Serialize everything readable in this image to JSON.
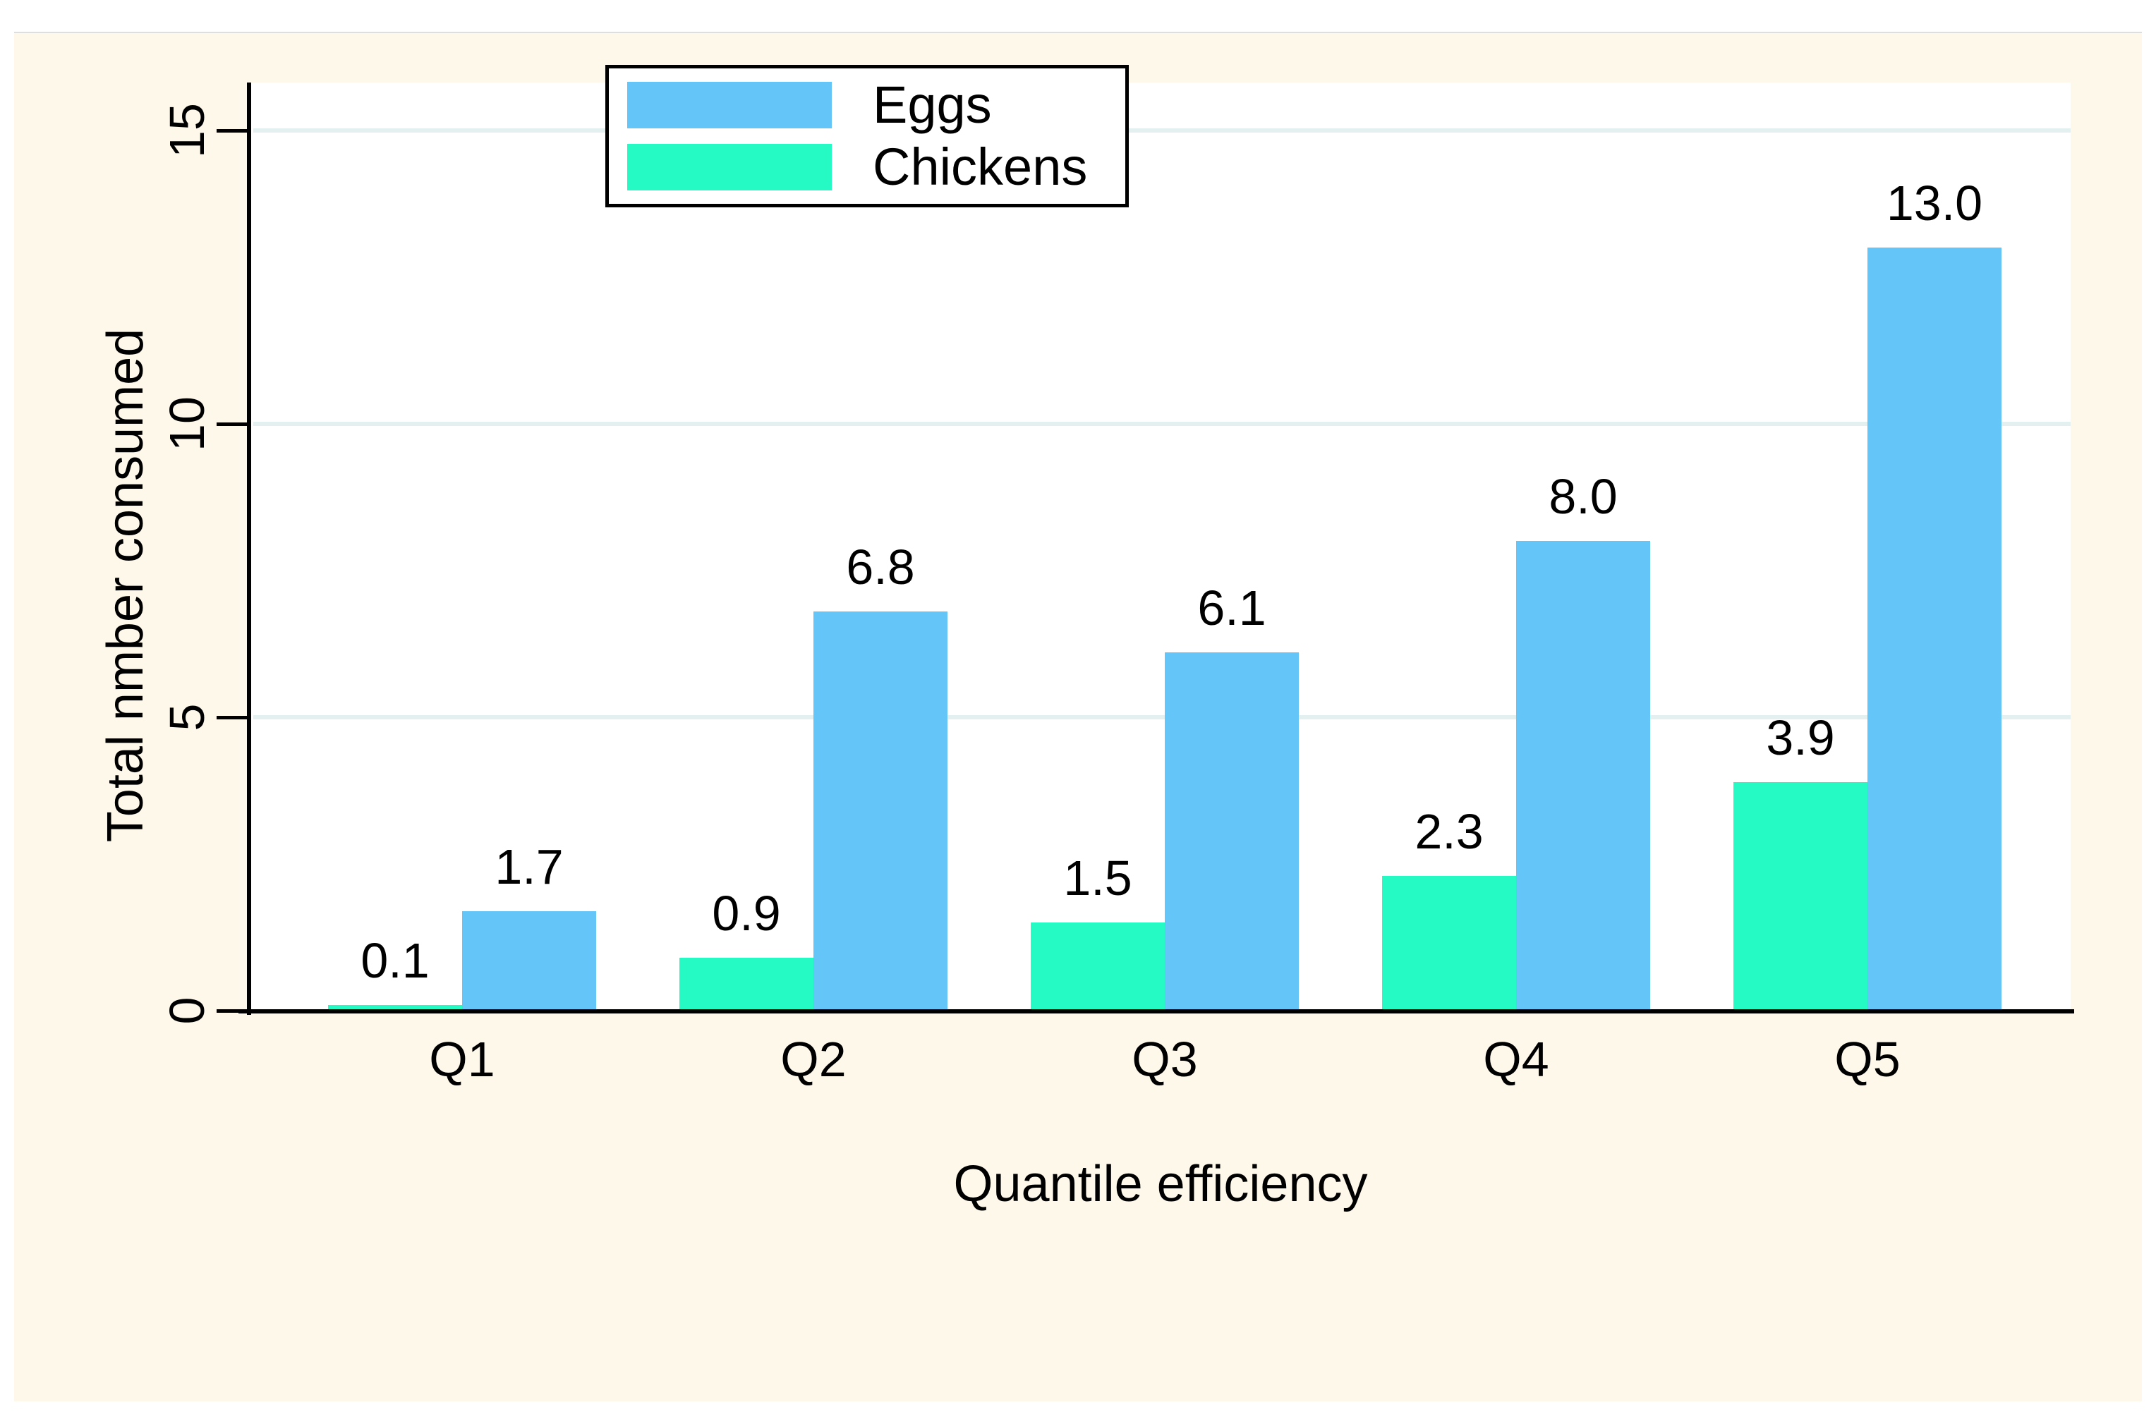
{
  "chart_data": {
    "type": "bar",
    "title": "",
    "xlabel": "Quantile efficiency",
    "ylabel": "Total nmber consumed",
    "categories": [
      "Q1",
      "Q2",
      "Q3",
      "Q4",
      "Q5"
    ],
    "series": [
      {
        "name": "Eggs",
        "color": "#64C5F8",
        "values": [
          1.7,
          6.8,
          6.1,
          8.0,
          13.0
        ],
        "labels": [
          "1.7",
          "6.8",
          "6.1",
          "8.0",
          "13.0"
        ]
      },
      {
        "name": "Chickens",
        "color": "#25FAC5",
        "values": [
          0.1,
          0.9,
          1.5,
          2.3,
          3.9
        ],
        "labels": [
          "0.1",
          "0.9",
          "1.5",
          "2.3",
          "3.9"
        ]
      }
    ],
    "group_order_left_to_right": [
      "Chickens",
      "Eggs"
    ],
    "yticks": [
      0,
      5,
      10,
      15
    ],
    "ylim": [
      0,
      15.8
    ],
    "grid": true,
    "legend_position": "top-left-inside",
    "colors": {
      "page_background": "#FFFFFF",
      "canvas_background": "#FDF8EA",
      "plot_background": "#FFFFFF",
      "gridline": "#E4F0F0",
      "axis": "#000000",
      "text": "#000000",
      "legend_border": "#000000",
      "legend_background": "#FFFFFF"
    }
  }
}
